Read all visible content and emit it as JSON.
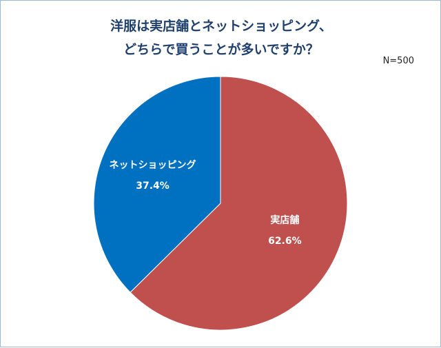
{
  "chart_data": {
    "type": "pie",
    "title_lines": [
      "洋服は実店舗とネットショッピング、",
      "どちらで買うことが多いですか？"
    ],
    "annotation": "N=500",
    "slices": [
      {
        "label": "実店舗",
        "value": 62.6,
        "value_text": "62.6%",
        "color": "#c0504d"
      },
      {
        "label": "ネットショッピング",
        "value": 37.4,
        "value_text": "37.4%",
        "color": "#0070c0"
      }
    ],
    "start": "12 o'clock",
    "direction": "clockwise"
  }
}
